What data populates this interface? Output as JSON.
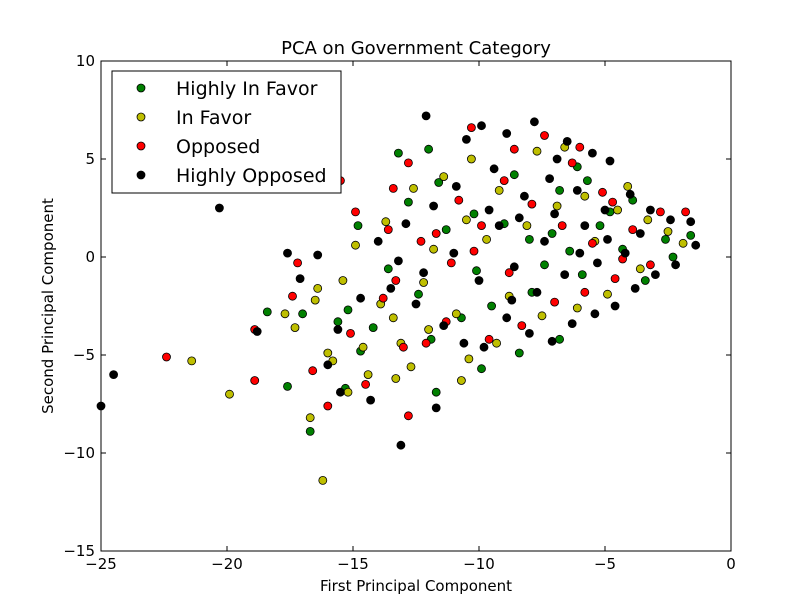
{
  "chart_data": {
    "type": "scatter",
    "title": "PCA on Government Category",
    "xlabel": "First Principal Component",
    "ylabel": "Second Principal Component",
    "xlim": [
      -25,
      0
    ],
    "ylim": [
      -15,
      10
    ],
    "xticks": [
      -25,
      -20,
      -15,
      -10,
      -5,
      0
    ],
    "yticks": [
      -15,
      -10,
      -5,
      0,
      5,
      10
    ],
    "xtick_labels": [
      "−25",
      "−20",
      "−15",
      "−10",
      "−5",
      "0"
    ],
    "ytick_labels": [
      "−15",
      "−10",
      "−5",
      "0",
      "5",
      "10"
    ],
    "grid": false,
    "legend_position": "top-left",
    "series": [
      {
        "name": "Highly In Favor",
        "color": "#008000",
        "points": [
          [
            -16.7,
            -8.9
          ],
          [
            -17.6,
            -6.6
          ],
          [
            -15.3,
            -6.7
          ],
          [
            -14.7,
            -4.8
          ],
          [
            -18.4,
            -2.8
          ],
          [
            -17.0,
            -2.9
          ],
          [
            -15.6,
            -3.3
          ],
          [
            -15.2,
            -2.7
          ],
          [
            -14.2,
            -3.6
          ],
          [
            -13.2,
            5.3
          ],
          [
            -12.0,
            5.5
          ],
          [
            -11.7,
            -6.9
          ],
          [
            -9.9,
            -5.7
          ],
          [
            -8.4,
            -4.9
          ],
          [
            -6.8,
            -4.2
          ],
          [
            -11.3,
            1.4
          ],
          [
            -10.2,
            2.2
          ],
          [
            -9.0,
            1.7
          ],
          [
            -8.0,
            0.9
          ],
          [
            -7.1,
            1.2
          ],
          [
            -6.4,
            0.3
          ],
          [
            -5.2,
            1.6
          ],
          [
            -4.3,
            0.4
          ],
          [
            -3.4,
            -1.2
          ],
          [
            -2.6,
            0.9
          ],
          [
            -1.6,
            1.1
          ],
          [
            -6.8,
            3.4
          ],
          [
            -5.7,
            3.9
          ],
          [
            -7.9,
            -1.8
          ],
          [
            -9.5,
            -2.5
          ],
          [
            -10.7,
            -3.1
          ],
          [
            -12.4,
            -1.9
          ],
          [
            -13.6,
            -0.6
          ],
          [
            -14.8,
            1.6
          ],
          [
            -12.8,
            2.8
          ],
          [
            -11.6,
            3.8
          ],
          [
            -8.6,
            4.2
          ],
          [
            -6.1,
            4.6
          ],
          [
            -4.8,
            2.3
          ],
          [
            -3.9,
            2.9
          ],
          [
            -2.3,
            0.0
          ],
          [
            -5.9,
            -0.9
          ],
          [
            -7.4,
            -0.4
          ],
          [
            -10.1,
            -0.7
          ],
          [
            -11.9,
            -4.2
          ]
        ]
      },
      {
        "name": "In Favor",
        "color": "#bfbf00",
        "points": [
          [
            -16.2,
            -11.4
          ],
          [
            -19.9,
            -7.0
          ],
          [
            -21.4,
            -5.3
          ],
          [
            -16.7,
            -8.2
          ],
          [
            -17.3,
            -3.6
          ],
          [
            -16.5,
            -2.2
          ],
          [
            -16.0,
            -4.9
          ],
          [
            -15.2,
            -6.9
          ],
          [
            -14.4,
            -6.0
          ],
          [
            -13.3,
            -6.2
          ],
          [
            -12.7,
            -5.6
          ],
          [
            -10.7,
            -6.3
          ],
          [
            -10.4,
            -5.2
          ],
          [
            -9.3,
            -4.4
          ],
          [
            -14.9,
            0.6
          ],
          [
            -15.4,
            -1.2
          ],
          [
            -13.9,
            -2.4
          ],
          [
            -13.7,
            1.8
          ],
          [
            -12.6,
            3.5
          ],
          [
            -11.4,
            4.1
          ],
          [
            -10.3,
            5.0
          ],
          [
            -9.2,
            3.4
          ],
          [
            -7.7,
            5.4
          ],
          [
            -6.6,
            5.6
          ],
          [
            -5.8,
            3.1
          ],
          [
            -4.5,
            2.4
          ],
          [
            -3.3,
            1.9
          ],
          [
            -2.5,
            1.3
          ],
          [
            -1.9,
            0.7
          ],
          [
            -3.6,
            -0.6
          ],
          [
            -4.9,
            -1.9
          ],
          [
            -6.1,
            -2.6
          ],
          [
            -7.5,
            -3.0
          ],
          [
            -8.8,
            -2.0
          ],
          [
            -10.9,
            -2.9
          ],
          [
            -12.0,
            -3.7
          ],
          [
            -13.1,
            -4.4
          ],
          [
            -14.6,
            -4.6
          ],
          [
            -11.8,
            0.4
          ],
          [
            -9.7,
            0.9
          ],
          [
            -8.1,
            1.6
          ],
          [
            -6.9,
            2.6
          ],
          [
            -5.4,
            0.8
          ],
          [
            -4.1,
            3.6
          ],
          [
            -15.8,
            -5.3
          ],
          [
            -17.7,
            -2.9
          ],
          [
            -16.4,
            -1.6
          ],
          [
            -13.4,
            -3.1
          ],
          [
            -12.2,
            -1.3
          ],
          [
            -10.5,
            1.9
          ]
        ]
      },
      {
        "name": "Opposed",
        "color": "#ff0000",
        "points": [
          [
            -22.4,
            -5.1
          ],
          [
            -18.9,
            -6.3
          ],
          [
            -18.9,
            -3.7
          ],
          [
            -17.4,
            -2.0
          ],
          [
            -17.2,
            -0.3
          ],
          [
            -16.6,
            -5.8
          ],
          [
            -16.0,
            -7.6
          ],
          [
            -14.5,
            -6.5
          ],
          [
            -12.8,
            -8.1
          ],
          [
            -13.8,
            -2.1
          ],
          [
            -13.3,
            -1.2
          ],
          [
            -14.9,
            2.3
          ],
          [
            -15.5,
            3.9
          ],
          [
            -13.6,
            1.4
          ],
          [
            -12.3,
            0.8
          ],
          [
            -11.1,
            -0.3
          ],
          [
            -9.9,
            1.6
          ],
          [
            -10.3,
            6.6
          ],
          [
            -8.6,
            5.5
          ],
          [
            -7.4,
            6.2
          ],
          [
            -6.3,
            4.8
          ],
          [
            -5.1,
            3.3
          ],
          [
            -3.9,
            1.4
          ],
          [
            -2.8,
            2.3
          ],
          [
            -1.8,
            2.3
          ],
          [
            -3.2,
            -0.4
          ],
          [
            -4.6,
            -1.1
          ],
          [
            -5.8,
            -1.8
          ],
          [
            -7.0,
            -2.3
          ],
          [
            -8.3,
            -3.5
          ],
          [
            -9.6,
            -4.2
          ],
          [
            -11.3,
            -3.3
          ],
          [
            -12.1,
            -4.4
          ],
          [
            -13.0,
            -4.6
          ],
          [
            -15.1,
            -3.9
          ],
          [
            -10.8,
            2.9
          ],
          [
            -9.0,
            3.9
          ],
          [
            -7.9,
            2.7
          ],
          [
            -6.7,
            1.6
          ],
          [
            -5.5,
            0.7
          ],
          [
            -4.3,
            -0.1
          ],
          [
            -8.8,
            -0.8
          ],
          [
            -10.2,
            0.3
          ],
          [
            -11.7,
            1.2
          ],
          [
            -13.4,
            3.5
          ],
          [
            -12.8,
            4.8
          ],
          [
            -6.0,
            5.6
          ],
          [
            -4.7,
            2.8
          ]
        ]
      },
      {
        "name": "Highly Opposed",
        "color": "#000000",
        "points": [
          [
            -25.0,
            -7.6
          ],
          [
            -24.5,
            -6.0
          ],
          [
            -20.3,
            2.5
          ],
          [
            -18.8,
            -3.8
          ],
          [
            -17.6,
            0.2
          ],
          [
            -17.1,
            -1.1
          ],
          [
            -16.4,
            0.1
          ],
          [
            -16.0,
            -5.5
          ],
          [
            -15.5,
            -6.9
          ],
          [
            -14.3,
            -7.3
          ],
          [
            -13.1,
            -9.6
          ],
          [
            -11.7,
            -7.7
          ],
          [
            -12.1,
            7.2
          ],
          [
            -10.5,
            6.0
          ],
          [
            -9.9,
            6.7
          ],
          [
            -8.9,
            6.3
          ],
          [
            -7.8,
            6.9
          ],
          [
            -6.5,
            5.9
          ],
          [
            -5.5,
            5.3
          ],
          [
            -4.8,
            4.9
          ],
          [
            -4.0,
            3.2
          ],
          [
            -3.2,
            2.4
          ],
          [
            -2.4,
            1.9
          ],
          [
            -1.6,
            1.8
          ],
          [
            -1.4,
            0.6
          ],
          [
            -2.2,
            -0.4
          ],
          [
            -3.0,
            -0.9
          ],
          [
            -3.8,
            -1.6
          ],
          [
            -4.6,
            -2.5
          ],
          [
            -5.4,
            -2.9
          ],
          [
            -6.3,
            -3.4
          ],
          [
            -7.1,
            -4.3
          ],
          [
            -8.0,
            -3.9
          ],
          [
            -8.9,
            -3.1
          ],
          [
            -9.8,
            -4.6
          ],
          [
            -10.6,
            -4.4
          ],
          [
            -11.4,
            -3.5
          ],
          [
            -12.5,
            -2.4
          ],
          [
            -13.5,
            -1.6
          ],
          [
            -14.7,
            -2.1
          ],
          [
            -15.6,
            -3.7
          ],
          [
            -14.0,
            0.8
          ],
          [
            -12.9,
            1.7
          ],
          [
            -11.8,
            2.6
          ],
          [
            -10.9,
            3.6
          ],
          [
            -9.4,
            4.5
          ],
          [
            -8.2,
            3.1
          ],
          [
            -7.2,
            4.0
          ],
          [
            -6.1,
            3.4
          ],
          [
            -5.0,
            2.4
          ],
          [
            -10.0,
            -1.2
          ],
          [
            -8.6,
            -0.5
          ],
          [
            -7.4,
            0.8
          ],
          [
            -6.0,
            0.2
          ],
          [
            -4.9,
            0.9
          ],
          [
            -3.6,
            1.2
          ],
          [
            -9.2,
            1.6
          ],
          [
            -11.0,
            0.2
          ],
          [
            -12.2,
            -0.8
          ],
          [
            -13.2,
            -0.2
          ],
          [
            -7.7,
            -1.8
          ],
          [
            -6.6,
            -0.9
          ],
          [
            -5.3,
            -0.3
          ],
          [
            -4.2,
            0.2
          ],
          [
            -9.6,
            2.4
          ],
          [
            -8.4,
            2.0
          ],
          [
            -7.0,
            2.2
          ],
          [
            -5.8,
            1.6
          ],
          [
            -6.9,
            5.0
          ],
          [
            -8.7,
            -2.2
          ]
        ]
      }
    ]
  }
}
